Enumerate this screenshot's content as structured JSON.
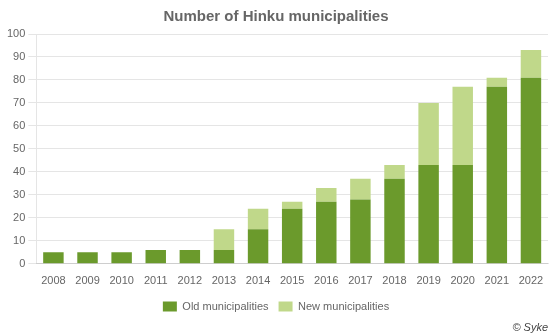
{
  "chart_data": {
    "type": "bar",
    "title": "Number of Hinku municipalities",
    "categories": [
      "2008",
      "2009",
      "2010",
      "2011",
      "2012",
      "2013",
      "2014",
      "2015",
      "2016",
      "2017",
      "2018",
      "2019",
      "2020",
      "2021",
      "2022"
    ],
    "series": [
      {
        "name": "Old municipalities",
        "color": "#6b9a2c",
        "values": [
          5,
          5,
          5,
          6,
          6,
          6,
          15,
          24,
          27,
          28,
          37,
          43,
          43,
          77,
          81
        ]
      },
      {
        "name": "New municipalities",
        "color": "#c0d88a",
        "values": [
          0,
          0,
          0,
          0,
          0,
          9,
          9,
          3,
          6,
          9,
          6,
          27,
          34,
          4,
          12
        ]
      }
    ],
    "stacked": true,
    "ylim": [
      0,
      100
    ],
    "yticks": [
      0,
      10,
      20,
      30,
      40,
      50,
      60,
      70,
      80,
      90,
      100
    ],
    "grid": true,
    "legend": "bottom",
    "annotations": [
      "© Syke"
    ]
  }
}
